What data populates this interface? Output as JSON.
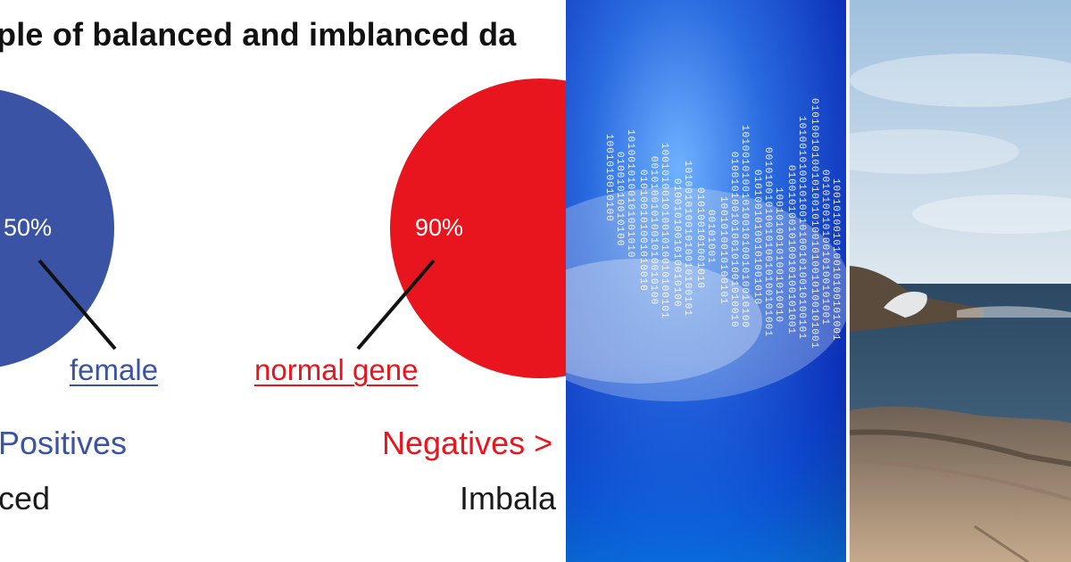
{
  "title": "ple of balanced and imblanced da",
  "left_pie": {
    "percent_label": "50%",
    "link_label": "female",
    "class_label": "Positives",
    "bottom_label": "ced"
  },
  "right_pie": {
    "percent_label": "90%",
    "link_label": "normal gene",
    "class_label": "Negatives >",
    "bottom_label": "Imbala"
  },
  "colors": {
    "blue": "#3a53a4",
    "red": "#e9151e",
    "black": "#111111"
  },
  "icons": [
    "binary-data-image",
    "rocky-coast-image"
  ]
}
